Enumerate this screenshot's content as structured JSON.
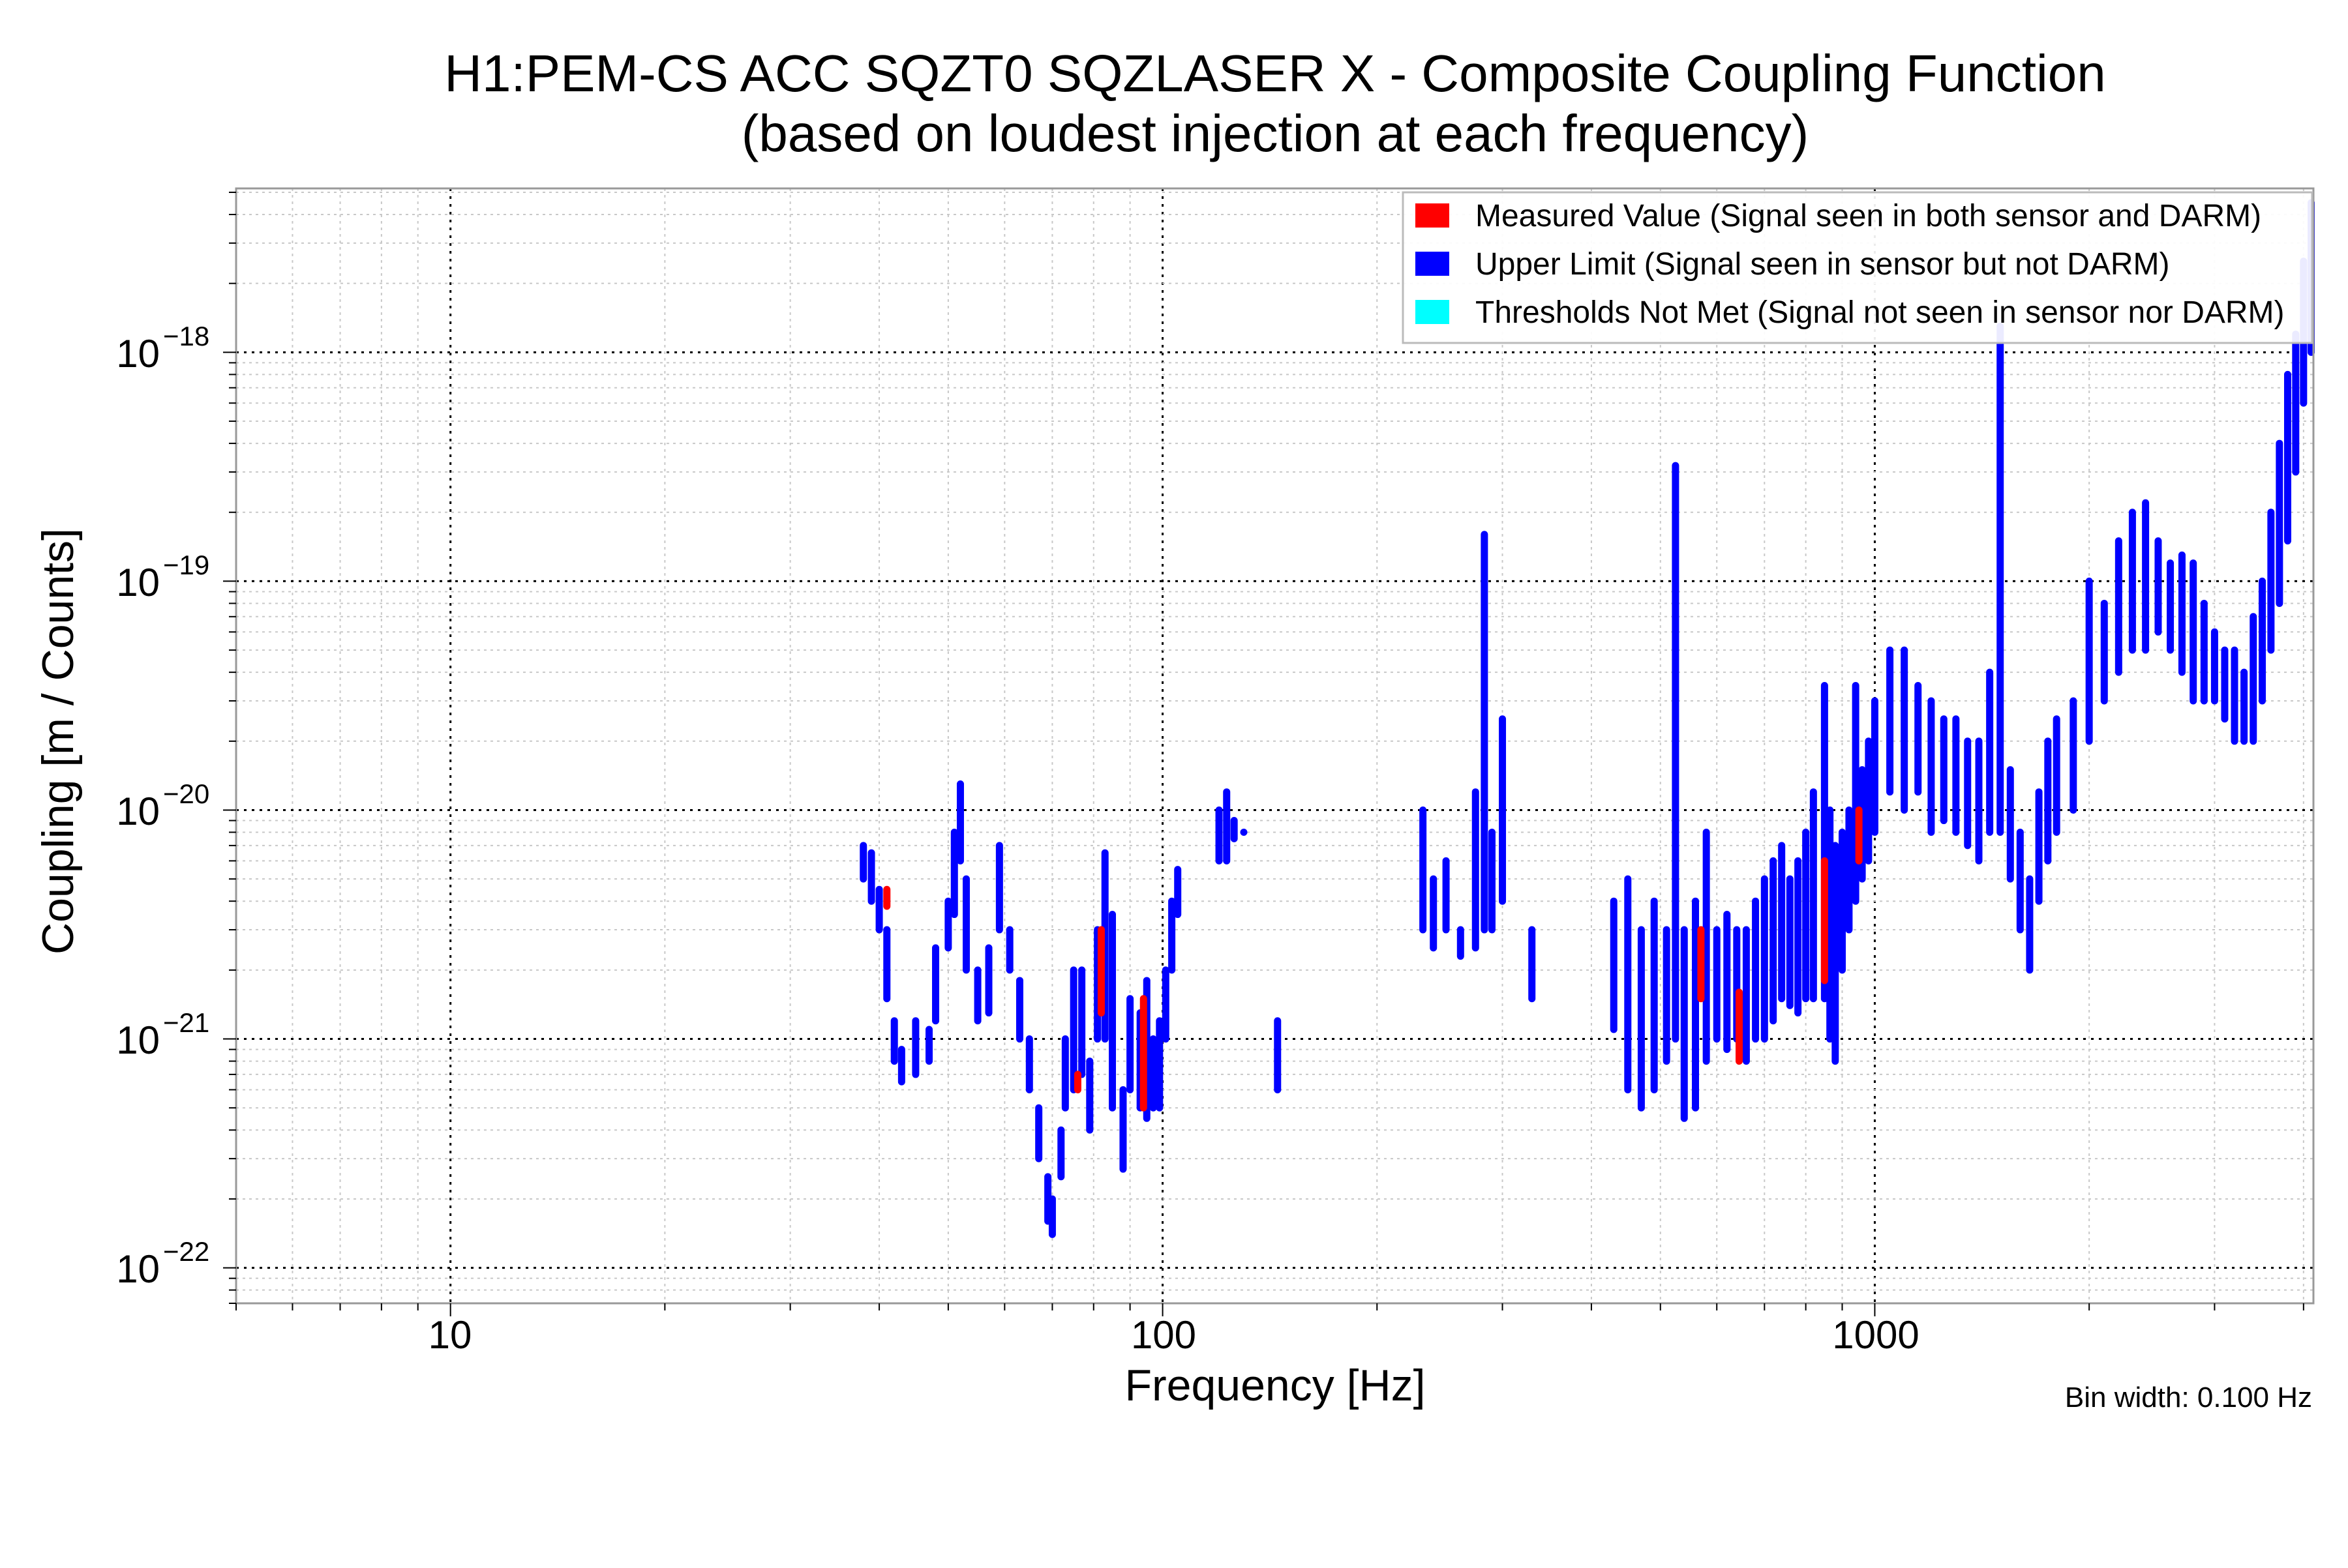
{
  "chart_data": {
    "type": "scatter",
    "title_line1": "H1:PEM-CS ACC SQZT0 SQZLASER X - Composite Coupling Function",
    "title_line2": "(based on loudest injection at each frequency)",
    "xlabel": "Frequency [Hz]",
    "ylabel": "Coupling [m / Counts]",
    "xscale": "log",
    "yscale": "log",
    "xlim": [
      5,
      4130
    ],
    "ylim": [
      7e-23,
      5.2e-18
    ],
    "grid": true,
    "x_ticks": [
      {
        "value": 10,
        "label": "10"
      },
      {
        "value": 100,
        "label": "100"
      },
      {
        "value": 1000,
        "label": "1000"
      }
    ],
    "y_ticks": [
      {
        "value": 1e-18,
        "base": "10",
        "exp": "−18"
      },
      {
        "value": 1e-19,
        "base": "10",
        "exp": "−19"
      },
      {
        "value": 1e-20,
        "base": "10",
        "exp": "−20"
      },
      {
        "value": 1e-21,
        "base": "10",
        "exp": "−21"
      },
      {
        "value": 1e-22,
        "base": "10",
        "exp": "−22"
      }
    ],
    "legend_placement": "top-right",
    "annotation": "Bin width: 0.100 Hz",
    "series": [
      {
        "name": "Measured Value (Signal seen in both sensor and DARM)",
        "color": "#ff0000",
        "points_freq_low_high": [
          [
            41,
            3.8e-21,
            4.5e-21
          ],
          [
            76,
            6e-22,
            7e-22
          ],
          [
            82,
            1.3e-21,
            3e-21
          ],
          [
            94,
            5e-22,
            1.5e-21
          ],
          [
            570,
            1.5e-21,
            3e-21
          ],
          [
            645,
            8e-22,
            1.6e-21
          ],
          [
            850,
            1.8e-21,
            6e-21
          ],
          [
            950,
            6e-21,
            1e-20
          ]
        ]
      },
      {
        "name": "Upper Limit (Signal seen in sensor but not DARM)",
        "color": "#0000ff",
        "points_freq_low_high": [
          [
            38,
            5e-21,
            7e-21
          ],
          [
            39,
            4e-21,
            6.5e-21
          ],
          [
            40,
            3e-21,
            4.5e-21
          ],
          [
            41,
            1.5e-21,
            3e-21
          ],
          [
            42,
            8e-22,
            1.2e-21
          ],
          [
            43,
            6.5e-22,
            9e-22
          ],
          [
            45,
            7e-22,
            1.2e-21
          ],
          [
            47,
            8e-22,
            1.1e-21
          ],
          [
            48,
            1.2e-21,
            2.5e-21
          ],
          [
            50,
            2.5e-21,
            4e-21
          ],
          [
            51,
            3.5e-21,
            8e-21
          ],
          [
            52,
            6e-21,
            1.3e-20
          ],
          [
            53,
            2e-21,
            5e-21
          ],
          [
            55,
            1.2e-21,
            2e-21
          ],
          [
            57,
            1.3e-21,
            2.5e-21
          ],
          [
            59,
            3e-21,
            7e-21
          ],
          [
            61,
            2e-21,
            3e-21
          ],
          [
            63,
            1e-21,
            1.8e-21
          ],
          [
            65,
            6e-22,
            1e-21
          ],
          [
            67,
            3e-22,
            5e-22
          ],
          [
            69,
            1.6e-22,
            2.5e-22
          ],
          [
            70,
            1.4e-22,
            2e-22
          ],
          [
            72,
            2.5e-22,
            4e-22
          ],
          [
            73,
            5e-22,
            1e-21
          ],
          [
            75,
            6e-22,
            2e-21
          ],
          [
            77,
            7e-22,
            2e-21
          ],
          [
            79,
            4e-22,
            8e-22
          ],
          [
            81,
            1e-21,
            3e-21
          ],
          [
            83,
            1e-21,
            6.5e-21
          ],
          [
            85,
            5e-22,
            3.5e-21
          ],
          [
            88,
            2.7e-22,
            6e-22
          ],
          [
            90,
            6e-22,
            1.5e-21
          ],
          [
            93,
            5e-22,
            1.3e-21
          ],
          [
            95,
            4.5e-22,
            1.8e-21
          ],
          [
            97,
            5e-22,
            1e-21
          ],
          [
            99,
            5e-22,
            1.2e-21
          ],
          [
            101,
            1e-21,
            2e-21
          ],
          [
            103,
            2e-21,
            4e-21
          ],
          [
            105,
            3.5e-21,
            5.5e-21
          ],
          [
            120,
            6e-21,
            1e-20
          ],
          [
            123,
            6e-21,
            1.2e-20
          ],
          [
            126,
            7.5e-21,
            9e-21
          ],
          [
            130,
            8e-21,
            8e-21
          ],
          [
            145,
            6e-22,
            1.2e-21
          ],
          [
            232,
            3e-21,
            1e-20
          ],
          [
            240,
            2.5e-21,
            5e-21
          ],
          [
            250,
            3e-21,
            6e-21
          ],
          [
            262,
            2.3e-21,
            3e-21
          ],
          [
            275,
            2.5e-21,
            1.2e-20
          ],
          [
            283,
            3e-21,
            1.6e-19
          ],
          [
            290,
            3e-21,
            8e-21
          ],
          [
            300,
            4e-21,
            2.5e-20
          ],
          [
            330,
            1.5e-21,
            3e-21
          ],
          [
            430,
            1.1e-21,
            4e-21
          ],
          [
            450,
            6e-22,
            5e-21
          ],
          [
            470,
            5e-22,
            3e-21
          ],
          [
            490,
            6e-22,
            4e-21
          ],
          [
            510,
            8e-22,
            3e-21
          ],
          [
            525,
            1e-21,
            3.2e-19
          ],
          [
            540,
            4.5e-22,
            3e-21
          ],
          [
            560,
            5e-22,
            4e-21
          ],
          [
            580,
            8e-22,
            8e-21
          ],
          [
            600,
            1e-21,
            3e-21
          ],
          [
            620,
            9e-22,
            3.5e-21
          ],
          [
            640,
            1e-21,
            3e-21
          ],
          [
            660,
            8e-22,
            3e-21
          ],
          [
            680,
            1e-21,
            4e-21
          ],
          [
            700,
            1e-21,
            5e-21
          ],
          [
            720,
            1.2e-21,
            6e-21
          ],
          [
            740,
            1.5e-21,
            7e-21
          ],
          [
            760,
            1.4e-21,
            5e-21
          ],
          [
            780,
            1.3e-21,
            6e-21
          ],
          [
            800,
            1.5e-21,
            8e-21
          ],
          [
            820,
            1.5e-21,
            1.2e-20
          ],
          [
            850,
            1.5e-21,
            3.5e-20
          ],
          [
            865,
            1e-21,
            1e-20
          ],
          [
            880,
            8e-22,
            7e-21
          ],
          [
            900,
            2e-21,
            8e-21
          ],
          [
            920,
            3e-21,
            1e-20
          ],
          [
            940,
            4e-21,
            3.5e-20
          ],
          [
            960,
            5e-21,
            1.5e-20
          ],
          [
            980,
            6e-21,
            2e-20
          ],
          [
            1000,
            8e-21,
            3e-20
          ],
          [
            1050,
            1.2e-20,
            5e-20
          ],
          [
            1100,
            1e-20,
            5e-20
          ],
          [
            1150,
            1.2e-20,
            3.5e-20
          ],
          [
            1200,
            8e-21,
            3e-20
          ],
          [
            1250,
            9e-21,
            2.5e-20
          ],
          [
            1300,
            8e-21,
            2.5e-20
          ],
          [
            1350,
            7e-21,
            2e-20
          ],
          [
            1400,
            6e-21,
            2e-20
          ],
          [
            1450,
            8e-21,
            4e-20
          ],
          [
            1500,
            8e-21,
            1.3e-18
          ],
          [
            1550,
            5e-21,
            1.5e-20
          ],
          [
            1600,
            3e-21,
            8e-21
          ],
          [
            1650,
            2e-21,
            5e-21
          ],
          [
            1700,
            4e-21,
            1.2e-20
          ],
          [
            1750,
            6e-21,
            2e-20
          ],
          [
            1800,
            8e-21,
            2.5e-20
          ],
          [
            1900,
            1e-20,
            3e-20
          ],
          [
            2000,
            2e-20,
            1e-19
          ],
          [
            2100,
            3e-20,
            8e-20
          ],
          [
            2200,
            4e-20,
            1.5e-19
          ],
          [
            2300,
            5e-20,
            2e-19
          ],
          [
            2400,
            5e-20,
            2.2e-19
          ],
          [
            2500,
            6e-20,
            1.5e-19
          ],
          [
            2600,
            5e-20,
            1.2e-19
          ],
          [
            2700,
            4e-20,
            1.3e-19
          ],
          [
            2800,
            3e-20,
            1.2e-19
          ],
          [
            2900,
            3e-20,
            8e-20
          ],
          [
            3000,
            3e-20,
            6e-20
          ],
          [
            3100,
            2.5e-20,
            5e-20
          ],
          [
            3200,
            2e-20,
            5e-20
          ],
          [
            3300,
            2e-20,
            4e-20
          ],
          [
            3400,
            2e-20,
            7e-20
          ],
          [
            3500,
            3e-20,
            1e-19
          ],
          [
            3600,
            5e-20,
            2e-19
          ],
          [
            3700,
            8e-20,
            4e-19
          ],
          [
            3800,
            1.5e-19,
            8e-19
          ],
          [
            3900,
            3e-19,
            1.2e-18
          ],
          [
            4000,
            6e-19,
            2.5e-18
          ],
          [
            4100,
            1e-18,
            4.5e-18
          ]
        ]
      },
      {
        "name": "Thresholds Not Met (Signal not seen in sensor nor DARM)",
        "color": "#00ffff",
        "points_freq_low_high": []
      }
    ]
  }
}
